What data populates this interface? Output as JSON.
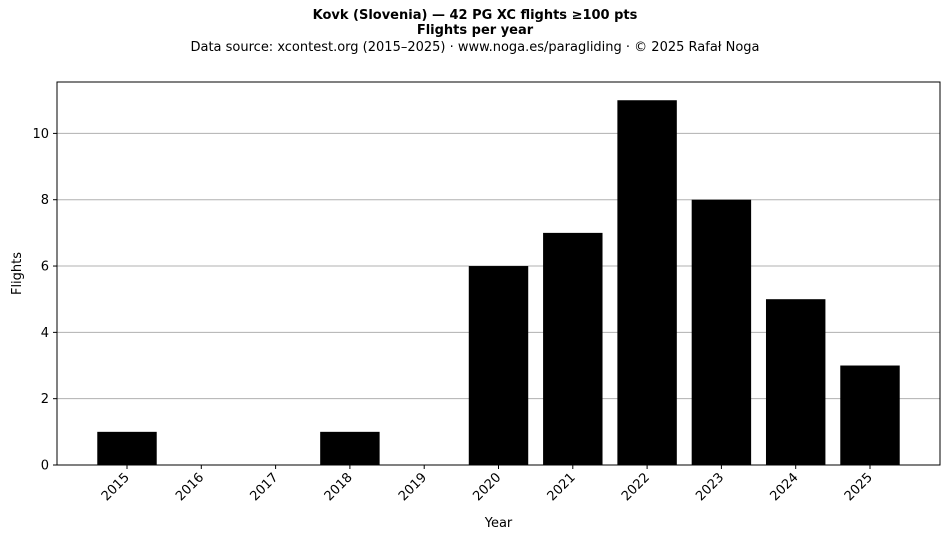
{
  "chart_data": {
    "type": "bar",
    "title": "Kovk (Slovenia)  —  42 PG XC flights ≥100 pts",
    "subtitle": "Flights per year",
    "source_note": "Data source: xcontest.org (2015–2025)  ·  www.noga.es/paragliding  ·  © 2025 Rafał Noga",
    "xlabel": "Year",
    "ylabel": "Flights",
    "categories": [
      "2015",
      "2016",
      "2017",
      "2018",
      "2019",
      "2020",
      "2021",
      "2022",
      "2023",
      "2024",
      "2025"
    ],
    "values": [
      1,
      0,
      0,
      1,
      0,
      6,
      7,
      11,
      8,
      5,
      3
    ],
    "ylim": [
      0,
      11.55
    ],
    "yticks": [
      0,
      2,
      4,
      6,
      8,
      10
    ],
    "grid": "y",
    "bar_color": "#000000",
    "grid_color": "#b0b0b0"
  }
}
